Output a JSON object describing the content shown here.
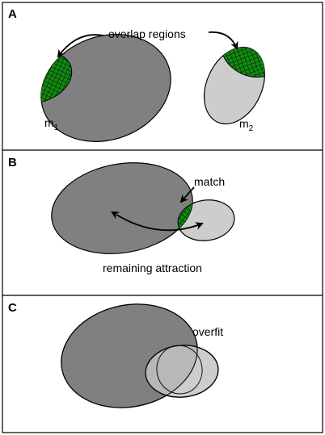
{
  "colors": {
    "dark_ellipse": "#808080",
    "light_ellipse": "#cdcdcd",
    "overlap_fill": "#128a12",
    "hatch": "#000000",
    "outline": "#000000"
  },
  "panels": [
    {
      "letter": "A",
      "labels": {
        "overlap": "overlap regions",
        "m1_base": "m",
        "m1_sub": "1",
        "m2_base": "m",
        "m2_sub": "2"
      }
    },
    {
      "letter": "B",
      "labels": {
        "match": "match",
        "attraction": "remaining attraction"
      }
    },
    {
      "letter": "C",
      "labels": {
        "overfit": "overfit"
      }
    }
  ]
}
